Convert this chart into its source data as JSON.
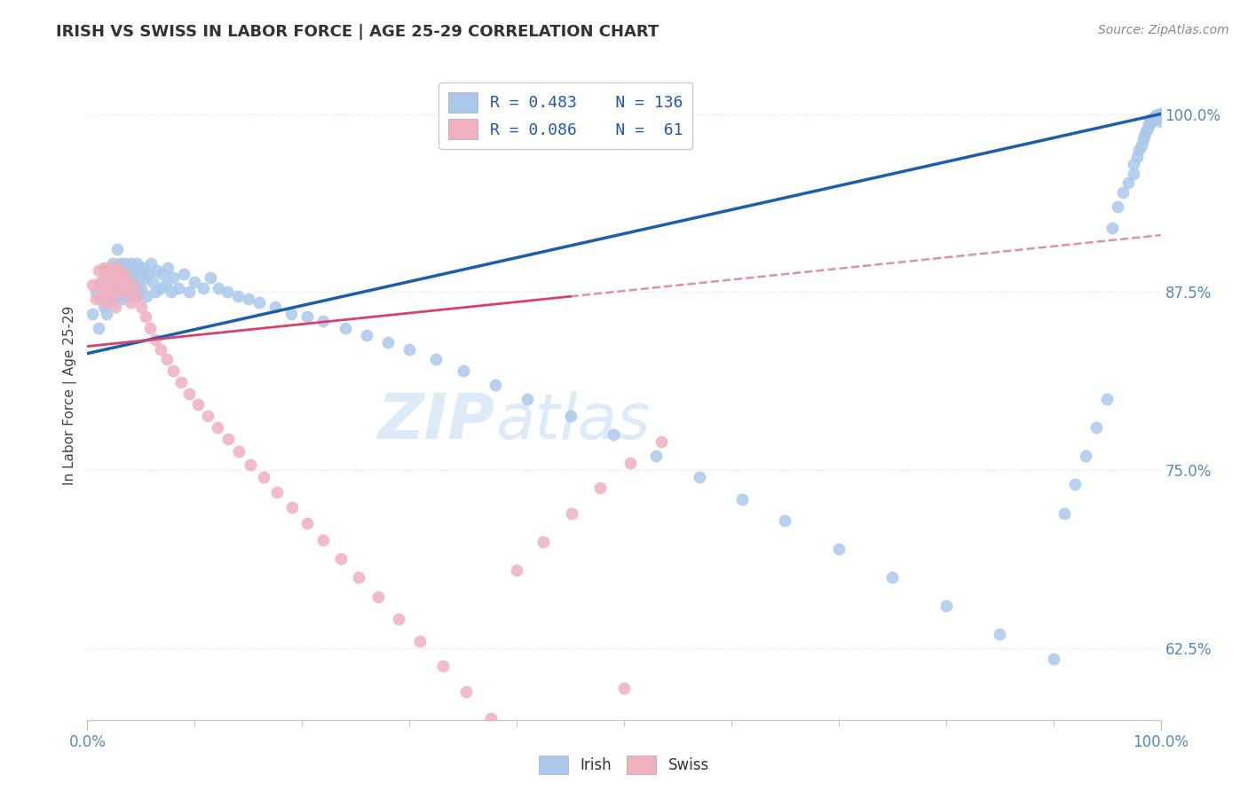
{
  "title": "IRISH VS SWISS IN LABOR FORCE | AGE 25-29 CORRELATION CHART",
  "source": "Source: ZipAtlas.com",
  "ylabel": "In Labor Force | Age 25-29",
  "xlim": [
    0.0,
    1.0
  ],
  "ylim": [
    0.575,
    1.03
  ],
  "yticks": [
    0.625,
    0.75,
    0.875,
    1.0
  ],
  "ytick_labels": [
    "62.5%",
    "75.0%",
    "87.5%",
    "100.0%"
  ],
  "xtick_labels": [
    "0.0%",
    "100.0%"
  ],
  "irish_R": 0.483,
  "irish_N": 136,
  "swiss_R": 0.086,
  "swiss_N": 61,
  "irish_color": "#aac8ea",
  "swiss_color": "#f0b0c0",
  "irish_line_color": "#1a5fa8",
  "swiss_line_color": "#d84070",
  "dashed_line_color": "#e090a8",
  "watermark_color": "#ddeaf8",
  "background_color": "#ffffff",
  "grid_color": "#dddddd",
  "tick_label_color": "#5588bb",
  "title_color": "#333333",
  "source_color": "#888888",
  "legend_text_color": "#2255bb",
  "irish_line_x0": 0.0,
  "irish_line_y0": 0.832,
  "irish_line_x1": 1.0,
  "irish_line_y1": 1.0,
  "swiss_line_x0": 0.0,
  "swiss_line_y0": 0.837,
  "swiss_line_x1": 0.45,
  "swiss_line_y1": 0.872,
  "dashed_line_x0": 0.45,
  "dashed_line_y0": 0.872,
  "dashed_line_x1": 1.0,
  "dashed_line_y1": 0.915,
  "irish_x": [
    0.005,
    0.008,
    0.01,
    0.012,
    0.013,
    0.015,
    0.015,
    0.017,
    0.018,
    0.018,
    0.02,
    0.02,
    0.021,
    0.022,
    0.023,
    0.023,
    0.024,
    0.025,
    0.025,
    0.026,
    0.027,
    0.028,
    0.028,
    0.029,
    0.03,
    0.03,
    0.031,
    0.032,
    0.033,
    0.034,
    0.035,
    0.036,
    0.037,
    0.038,
    0.039,
    0.04,
    0.04,
    0.041,
    0.042,
    0.043,
    0.044,
    0.045,
    0.046,
    0.047,
    0.048,
    0.049,
    0.05,
    0.052,
    0.054,
    0.055,
    0.057,
    0.059,
    0.061,
    0.063,
    0.065,
    0.068,
    0.07,
    0.073,
    0.075,
    0.078,
    0.08,
    0.085,
    0.09,
    0.095,
    0.1,
    0.108,
    0.115,
    0.122,
    0.13,
    0.14,
    0.15,
    0.16,
    0.175,
    0.19,
    0.205,
    0.22,
    0.24,
    0.26,
    0.28,
    0.3,
    0.325,
    0.35,
    0.38,
    0.41,
    0.45,
    0.49,
    0.53,
    0.57,
    0.61,
    0.65,
    0.7,
    0.75,
    0.8,
    0.85,
    0.9,
    0.91,
    0.92,
    0.93,
    0.94,
    0.95,
    0.955,
    0.96,
    0.965,
    0.97,
    0.975,
    0.975,
    0.978,
    0.98,
    0.982,
    0.984,
    0.985,
    0.986,
    0.988,
    0.989,
    0.99,
    0.99,
    0.992,
    0.993,
    0.994,
    0.995,
    0.996,
    0.997,
    0.998,
    0.999,
    1.0,
    1.0,
    1.0,
    1.0,
    1.0,
    1.0,
    1.0,
    1.0,
    1.0,
    1.0,
    1.0,
    1.0
  ],
  "irish_y": [
    0.86,
    0.875,
    0.85,
    0.87,
    0.88,
    0.865,
    0.89,
    0.875,
    0.86,
    0.885,
    0.87,
    0.89,
    0.882,
    0.875,
    0.868,
    0.888,
    0.895,
    0.878,
    0.892,
    0.885,
    0.872,
    0.888,
    0.905,
    0.882,
    0.895,
    0.875,
    0.89,
    0.87,
    0.885,
    0.895,
    0.878,
    0.892,
    0.885,
    0.872,
    0.888,
    0.88,
    0.895,
    0.878,
    0.892,
    0.885,
    0.872,
    0.888,
    0.895,
    0.882,
    0.875,
    0.89,
    0.878,
    0.892,
    0.885,
    0.872,
    0.888,
    0.895,
    0.882,
    0.875,
    0.89,
    0.878,
    0.888,
    0.88,
    0.892,
    0.875,
    0.885,
    0.878,
    0.888,
    0.875,
    0.882,
    0.878,
    0.885,
    0.878,
    0.875,
    0.872,
    0.87,
    0.868,
    0.865,
    0.86,
    0.858,
    0.855,
    0.85,
    0.845,
    0.84,
    0.835,
    0.828,
    0.82,
    0.81,
    0.8,
    0.788,
    0.775,
    0.76,
    0.745,
    0.73,
    0.715,
    0.695,
    0.675,
    0.655,
    0.635,
    0.618,
    0.72,
    0.74,
    0.76,
    0.78,
    0.8,
    0.92,
    0.935,
    0.945,
    0.952,
    0.958,
    0.965,
    0.97,
    0.975,
    0.978,
    0.982,
    0.985,
    0.988,
    0.99,
    0.992,
    0.994,
    0.996,
    0.995,
    0.997,
    0.998,
    0.999,
    0.998,
    0.999,
    1.0,
    1.0,
    0.995,
    0.997,
    0.998,
    0.999,
    1.0,
    1.0,
    1.0,
    1.0,
    1.0,
    1.0,
    1.0,
    1.0
  ],
  "swiss_x": [
    0.005,
    0.008,
    0.01,
    0.012,
    0.014,
    0.015,
    0.016,
    0.017,
    0.018,
    0.02,
    0.021,
    0.022,
    0.023,
    0.024,
    0.025,
    0.026,
    0.027,
    0.028,
    0.03,
    0.032,
    0.034,
    0.036,
    0.038,
    0.04,
    0.043,
    0.046,
    0.05,
    0.054,
    0.058,
    0.063,
    0.068,
    0.074,
    0.08,
    0.087,
    0.095,
    0.103,
    0.112,
    0.121,
    0.131,
    0.141,
    0.152,
    0.164,
    0.177,
    0.191,
    0.205,
    0.22,
    0.236,
    0.253,
    0.271,
    0.29,
    0.31,
    0.331,
    0.353,
    0.376,
    0.4,
    0.425,
    0.451,
    0.478,
    0.506,
    0.535,
    0.5
  ],
  "swiss_y": [
    0.88,
    0.87,
    0.89,
    0.882,
    0.875,
    0.892,
    0.868,
    0.885,
    0.878,
    0.888,
    0.875,
    0.892,
    0.872,
    0.888,
    0.882,
    0.865,
    0.878,
    0.892,
    0.885,
    0.875,
    0.888,
    0.882,
    0.875,
    0.868,
    0.88,
    0.872,
    0.865,
    0.858,
    0.85,
    0.842,
    0.835,
    0.828,
    0.82,
    0.812,
    0.804,
    0.796,
    0.788,
    0.78,
    0.772,
    0.763,
    0.754,
    0.745,
    0.735,
    0.724,
    0.713,
    0.701,
    0.688,
    0.675,
    0.661,
    0.646,
    0.63,
    0.613,
    0.595,
    0.576,
    0.68,
    0.7,
    0.72,
    0.738,
    0.755,
    0.77,
    0.597
  ]
}
